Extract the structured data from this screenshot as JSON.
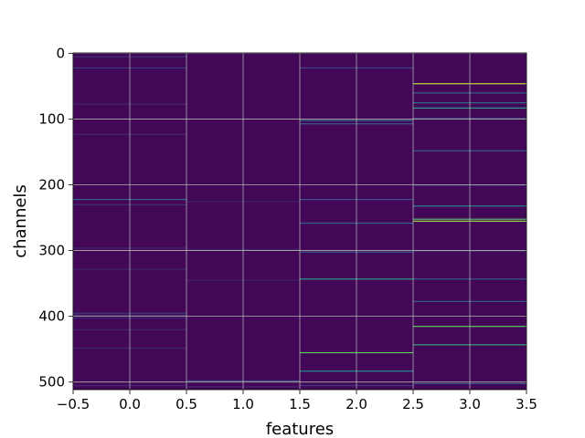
{
  "chart_data": {
    "type": "heatmap",
    "title": "",
    "xlabel": "features",
    "ylabel": "channels",
    "n_rows": 512,
    "n_cols": 4,
    "xlim": [
      -0.5,
      3.5
    ],
    "ylim": [
      511.5,
      -0.5
    ],
    "x_ticks": [
      -0.5,
      0.0,
      0.5,
      1.0,
      1.5,
      2.0,
      2.5,
      3.0,
      3.5
    ],
    "x_tick_labels": [
      "−0.5",
      "0.0",
      "0.5",
      "1.0",
      "1.5",
      "2.0",
      "2.5",
      "3.0",
      "3.5"
    ],
    "y_ticks": [
      0,
      100,
      200,
      300,
      400,
      500
    ],
    "y_tick_labels": [
      "0",
      "100",
      "200",
      "300",
      "400",
      "500"
    ],
    "grid": true,
    "colormap": "viridis",
    "background_value": 0.02,
    "highlights": [
      {
        "feature": 0,
        "channels": [
          5,
          22,
          77,
          123,
          222,
          230,
          296,
          328,
          395,
          398,
          402,
          420,
          448,
          505
        ],
        "values": [
          0.15,
          0.18,
          0.12,
          0.12,
          0.32,
          0.14,
          0.12,
          0.12,
          0.16,
          0.16,
          0.12,
          0.12,
          0.12,
          0.12
        ]
      },
      {
        "feature": 1,
        "channels": [
          225,
          298,
          345,
          498,
          507
        ],
        "values": [
          0.1,
          0.1,
          0.1,
          0.25,
          0.12
        ]
      },
      {
        "feature": 2,
        "channels": [
          22,
          102,
          107,
          222,
          258,
          302,
          343,
          455,
          483,
          505
        ],
        "values": [
          0.2,
          0.35,
          0.28,
          0.25,
          0.3,
          0.28,
          0.55,
          0.75,
          0.5,
          0.18
        ]
      },
      {
        "feature": 3,
        "channels": [
          46,
          60,
          75,
          83,
          99,
          148,
          200,
          232,
          252,
          255,
          300,
          343,
          377,
          415,
          443,
          502
        ],
        "values": [
          0.9,
          0.3,
          0.35,
          0.55,
          0.3,
          0.3,
          0.25,
          0.45,
          0.7,
          0.85,
          0.28,
          0.28,
          0.3,
          0.75,
          0.6,
          0.25
        ]
      }
    ]
  }
}
